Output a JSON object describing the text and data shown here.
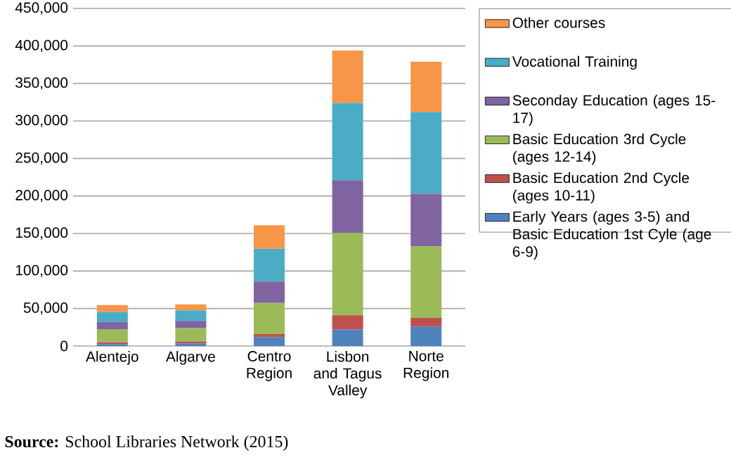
{
  "chart_data": {
    "type": "bar",
    "stacked": true,
    "grid": "y",
    "legend": "right",
    "categories": [
      "Alentejo",
      "Algarve",
      "Centro Region",
      "Lisbon and Tagus Valley",
      "Norte Region"
    ],
    "series": [
      {
        "name": "Early Years (ages 3-5) and Basic Education 1st Cyle (age 6-9)",
        "color": "#4f81bd",
        "values": [
          2500,
          3500,
          12000,
          22000,
          26000
        ]
      },
      {
        "name": "Basic Education 2nd Cycle (ages 10-11)",
        "color": "#c0504d",
        "values": [
          2500,
          2500,
          4000,
          19000,
          11500
        ]
      },
      {
        "name": "Basic Education 3rd Cycle (ages 12-14)",
        "color": "#9bbb59",
        "values": [
          17500,
          18000,
          41500,
          110000,
          95500
        ]
      },
      {
        "name": "Seconday Education  (ages 15-17)",
        "color": "#8064a2",
        "values": [
          9500,
          9500,
          28500,
          70000,
          70000
        ]
      },
      {
        "name": "Vocational Training",
        "color": "#4bacc6",
        "values": [
          13500,
          14000,
          43500,
          103000,
          109000
        ]
      },
      {
        "name": "Other courses",
        "color": "#f79646",
        "values": [
          9000,
          8000,
          31500,
          70000,
          67000
        ]
      }
    ],
    "ylim": [
      0,
      450000
    ],
    "yticks": [
      0,
      {
        "value": 50000,
        "label": "50,000"
      },
      {
        "value": 100000,
        "label": "100,000"
      },
      {
        "value": 150000,
        "label": "150,000"
      },
      {
        "value": 200000,
        "label": "200,000"
      },
      {
        "value": 250000,
        "label": "250,000"
      },
      {
        "value": 300000,
        "label": "300,000"
      },
      {
        "value": 350000,
        "label": "350,000"
      },
      {
        "value": 400000,
        "label": "400,000"
      },
      {
        "value": 450000,
        "label": "450,000"
      }
    ],
    "annotations": [
      "**Source:** School Libraries Network (2015)"
    ]
  }
}
